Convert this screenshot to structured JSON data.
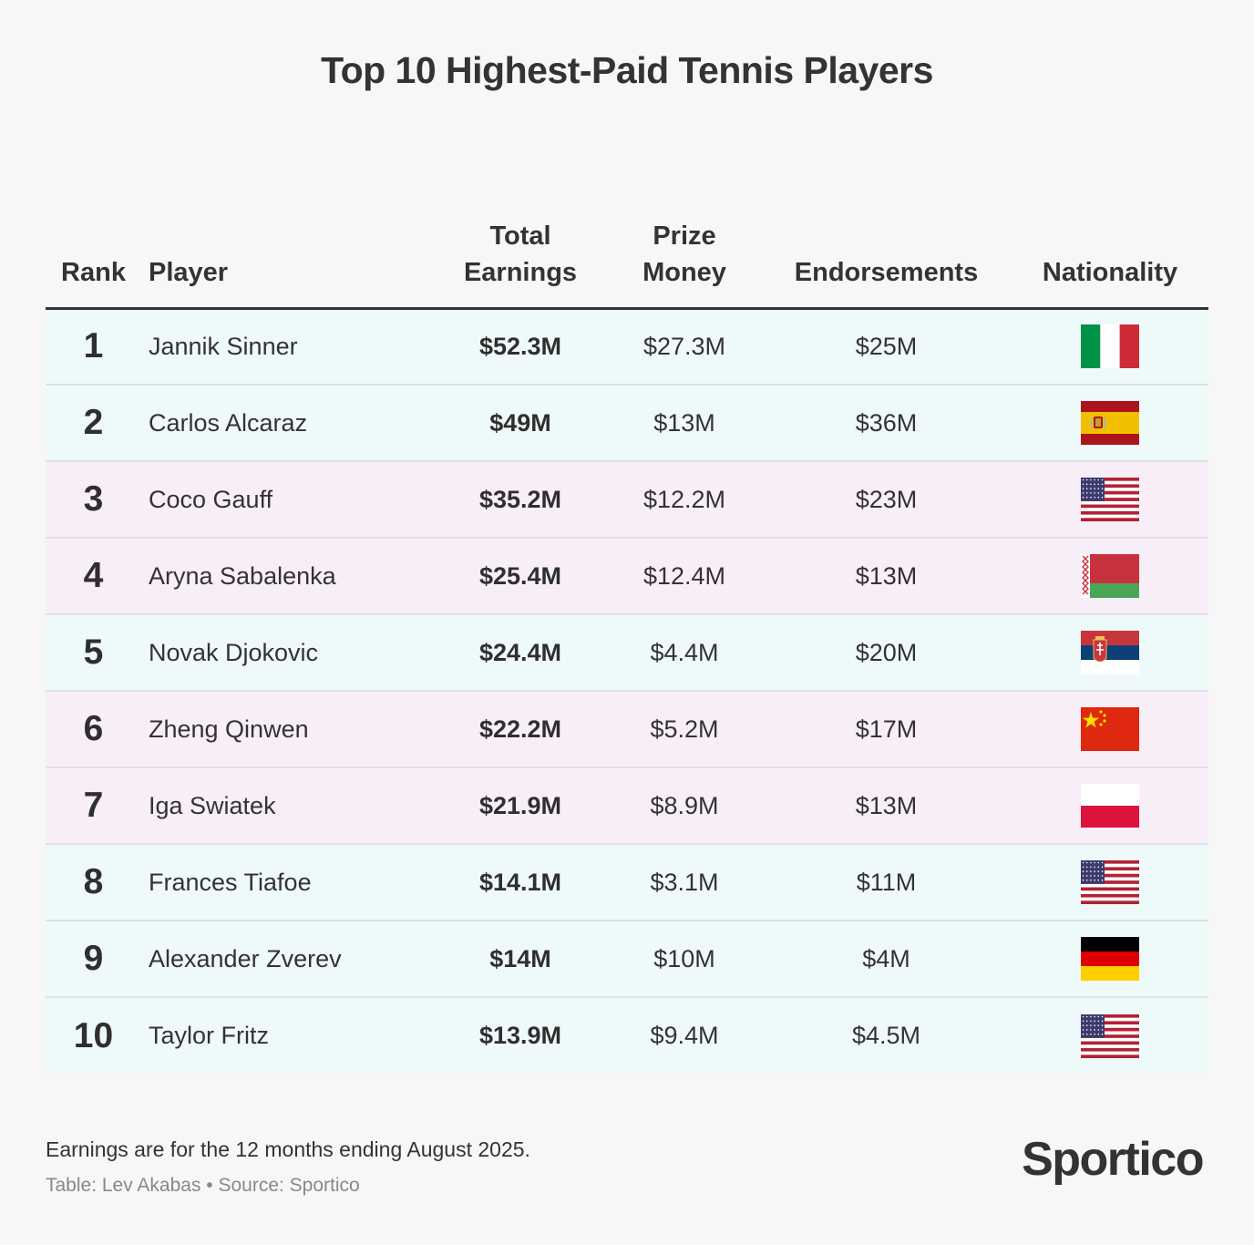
{
  "chart_data": {
    "type": "table",
    "title": "Top 10 Highest-Paid Tennis Players",
    "columns": {
      "rank": "Rank",
      "player": "Player",
      "total_l1": "Total",
      "total_l2": "Earnings",
      "prize_l1": "Prize",
      "prize_l2": "Money",
      "endorsements": "Endorsements",
      "nationality": "Nationality"
    },
    "rows": [
      {
        "rank": "1",
        "player": "Jannik Sinner",
        "total": "$52.3M",
        "prize": "$27.3M",
        "endorsements": "$25M",
        "flag": "italy-flag-icon",
        "bg": "#eefafa"
      },
      {
        "rank": "2",
        "player": "Carlos Alcaraz",
        "total": "$49M",
        "prize": "$13M",
        "endorsements": "$36M",
        "flag": "spain-flag-icon",
        "bg": "#eefafa"
      },
      {
        "rank": "3",
        "player": "Coco Gauff",
        "total": "$35.2M",
        "prize": "$12.2M",
        "endorsements": "$23M",
        "flag": "usa-flag-icon",
        "bg": "#f8eef8"
      },
      {
        "rank": "4",
        "player": "Aryna Sabalenka",
        "total": "$25.4M",
        "prize": "$12.4M",
        "endorsements": "$13M",
        "flag": "belarus-flag-icon",
        "bg": "#f8eef8"
      },
      {
        "rank": "5",
        "player": "Novak Djokovic",
        "total": "$24.4M",
        "prize": "$4.4M",
        "endorsements": "$20M",
        "flag": "serbia-flag-icon",
        "bg": "#eefafa"
      },
      {
        "rank": "6",
        "player": "Zheng Qinwen",
        "total": "$22.2M",
        "prize": "$5.2M",
        "endorsements": "$17M",
        "flag": "china-flag-icon",
        "bg": "#f8eef8"
      },
      {
        "rank": "7",
        "player": "Iga Swiatek",
        "total": "$21.9M",
        "prize": "$8.9M",
        "endorsements": "$13M",
        "flag": "poland-flag-icon",
        "bg": "#f8eef8"
      },
      {
        "rank": "8",
        "player": "Frances Tiafoe",
        "total": "$14.1M",
        "prize": "$3.1M",
        "endorsements": "$11M",
        "flag": "usa-flag-icon",
        "bg": "#eefafa"
      },
      {
        "rank": "9",
        "player": "Alexander Zverev",
        "total": "$14M",
        "prize": "$10M",
        "endorsements": "$4M",
        "flag": "germany-flag-icon",
        "bg": "#eefafa"
      },
      {
        "rank": "10",
        "player": "Taylor Fritz",
        "total": "$13.9M",
        "prize": "$9.4M",
        "endorsements": "$4.5M",
        "flag": "usa-flag-icon",
        "bg": "#eefafa"
      }
    ]
  },
  "footer": {
    "note": "Earnings are for the 12 months ending August 2025.",
    "credit": "Table: Lev Akabas • Source: Sportico",
    "logo": "Sportico"
  },
  "colors": {
    "men_row": "#eefafa",
    "women_row": "#f8eef8",
    "text": "#333333",
    "header_rule": "#333333"
  }
}
